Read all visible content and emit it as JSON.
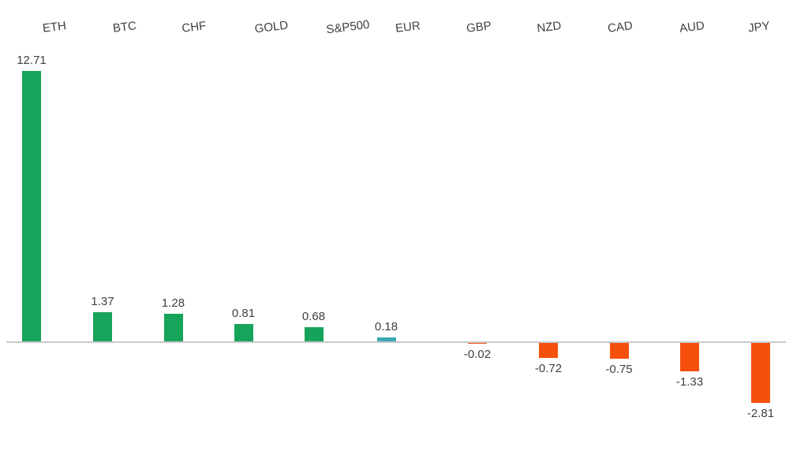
{
  "chart_data": {
    "type": "bar",
    "categories": [
      "ETH",
      "BTC",
      "CHF",
      "GOLD",
      "S&P500",
      "EUR",
      "GBP",
      "NZD",
      "CAD",
      "AUD",
      "JPY"
    ],
    "values": [
      12.71,
      1.37,
      1.28,
      0.81,
      0.68,
      0.18,
      -0.02,
      -0.72,
      -0.75,
      -1.33,
      -2.81
    ],
    "value_labels": [
      "12.71",
      "1.37",
      "1.28",
      "0.81",
      "0.68",
      "0.18",
      "-0.02",
      "-0.72",
      "-0.75",
      "-1.33",
      "-2.81"
    ],
    "bar_colors": [
      "#16a35a",
      "#16a35a",
      "#16a35a",
      "#16a35a",
      "#16a35a",
      "#39a8b4",
      "#f6500d",
      "#f6500d",
      "#f6500d",
      "#f6500d",
      "#f6500d"
    ],
    "colors": {
      "positive": "#16a35a",
      "eur_bar": "#39a8b4",
      "negative": "#f6500d",
      "axis_line": "#c9c9c9",
      "label_text": "#3f3f3f",
      "background": "#ffffff"
    },
    "title": "",
    "xlabel": "",
    "ylabel": "",
    "ylim": [
      -3,
      13
    ],
    "baseline_value": 0,
    "grid": false,
    "legend": false,
    "y_axis_visible": false,
    "category_labels_position": "top",
    "category_label_rotation_deg": -7
  }
}
